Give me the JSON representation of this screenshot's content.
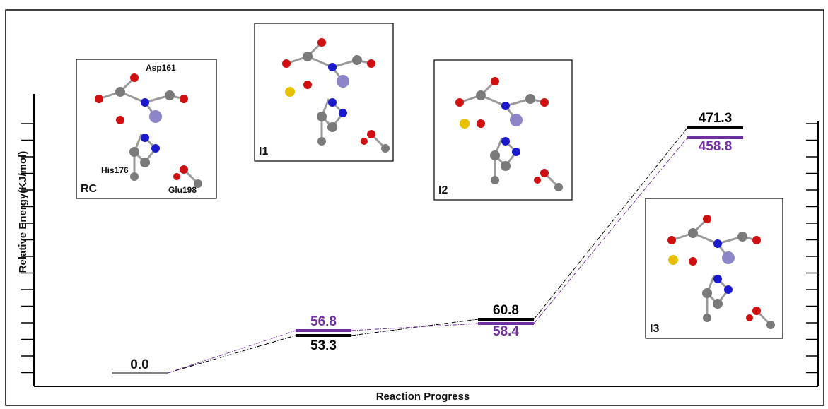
{
  "axis": {
    "y_label": "Relative Energy(KJ/mol)",
    "x_label": "Reaction Progress"
  },
  "stages": [
    {
      "levels": [
        {
          "text": "0.0",
          "color": "#808080",
          "label_color": "#1a1a1a"
        }
      ]
    },
    {
      "levels": [
        {
          "text": "53.3",
          "color": "#000000"
        },
        {
          "text": "56.8",
          "color": "#7030a0"
        }
      ]
    },
    {
      "levels": [
        {
          "text": "60.8",
          "color": "#000000"
        },
        {
          "text": "58.4",
          "color": "#7030a0"
        }
      ]
    },
    {
      "levels": [
        {
          "text": "471.3",
          "color": "#000000"
        },
        {
          "text": "458.8",
          "color": "#7030a0"
        }
      ]
    }
  ],
  "structures": [
    {
      "label": "RC",
      "residues": [
        "Asp161",
        "His176",
        "Glu198"
      ]
    },
    {
      "label": "I1"
    },
    {
      "label": "I2"
    },
    {
      "label": "I3"
    }
  ]
}
